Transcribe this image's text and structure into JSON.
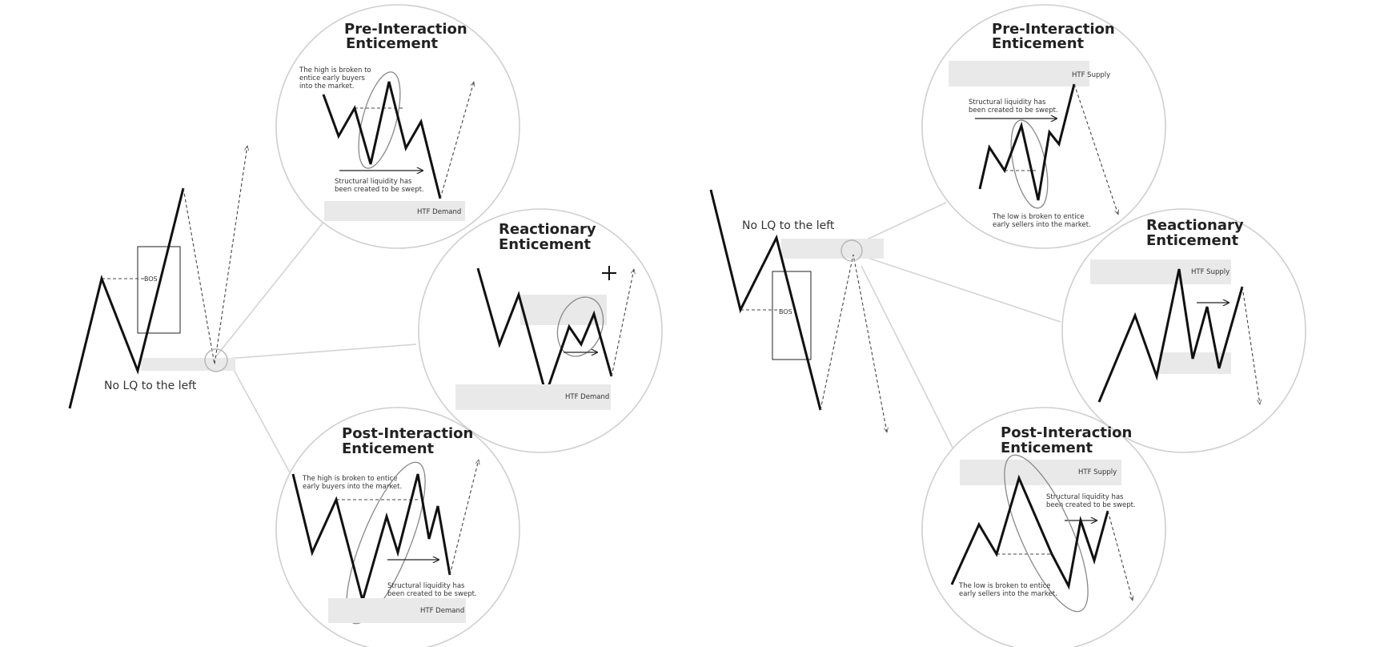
{
  "left": {
    "lq_label": "No LQ to the left",
    "bos_label": "BOS",
    "pre": {
      "title_line1": "Pre-Interaction",
      "title_line2": "Enticement",
      "note1": [
        "The high is broken to",
        "entice early buyers",
        "into the market."
      ],
      "note2": [
        "Structural liquidity has",
        "been created to be swept."
      ],
      "zone": "HTF Demand"
    },
    "react": {
      "title_line1": "Reactionary",
      "title_line2": "Enticement",
      "zone": "HTF Demand"
    },
    "post": {
      "title_line1": "Post-Interaction",
      "title_line2": "Enticement",
      "note1": [
        "The high is broken to entice",
        "early buyers into the market."
      ],
      "note2": [
        "Structural liquidity has",
        "been created to be swept."
      ],
      "zone": "HTF Demand"
    }
  },
  "right": {
    "lq_label": "No LQ to the left",
    "bos_label": "BOS",
    "pre": {
      "title_line1": "Pre-Interaction",
      "title_line2": "Enticement",
      "note1": [
        "Structural liquidity has",
        "been created to be swept."
      ],
      "note2": [
        "The low is broken to entice",
        "early sellers into the market."
      ],
      "zone": "HTF Supply"
    },
    "react": {
      "title_line1": "Reactionary",
      "title_line2": "Enticement",
      "zone": "HTF Supply"
    },
    "post": {
      "title_line1": "Post-Interaction",
      "title_line2": "Enticement",
      "note1": [
        "Structural liquidity has",
        "been created to be swept."
      ],
      "note2": [
        "The low is broken to entice",
        "early sellers into the market."
      ],
      "zone": "HTF Supply"
    }
  },
  "colors": {
    "price_line": "#111111",
    "circle_border": "#cfcfcf",
    "zone_fill": "#e9e9e9"
  }
}
